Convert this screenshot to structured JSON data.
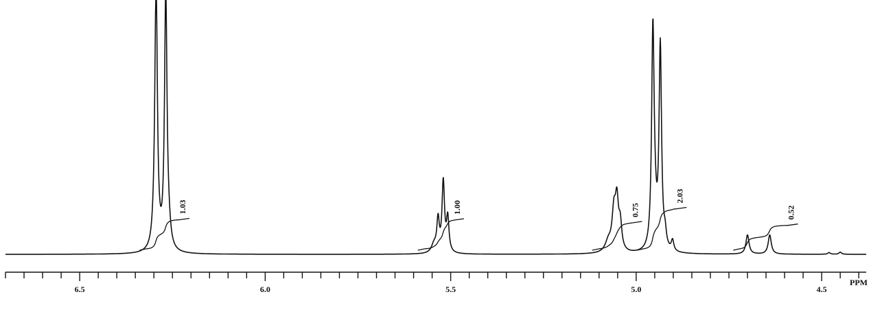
{
  "chart_data": {
    "type": "line",
    "title": "",
    "xlabel": "PPM",
    "ylabel": "",
    "xlim": [
      6.7,
      4.38
    ],
    "x_reversed": true,
    "grid": false,
    "major_ticks": [
      6.5,
      6.0,
      5.5,
      5.0,
      4.5
    ],
    "tick_labels": [
      "6.5",
      "6.0",
      "5.5",
      "5.0",
      "4.5"
    ],
    "minor_tick_step": 0.05,
    "baseline_intensity": 0.0,
    "peaks": [
      {
        "ppm": 6.294,
        "height": 1.2,
        "width": 0.004
      },
      {
        "ppm": 6.268,
        "height": 1.2,
        "width": 0.004
      },
      {
        "ppm": 6.297,
        "height": 0.09,
        "width": 0.006
      },
      {
        "ppm": 6.26,
        "height": 0.07,
        "width": 0.006
      },
      {
        "ppm": 5.534,
        "height": 0.15,
        "width": 0.004
      },
      {
        "ppm": 5.52,
        "height": 0.33,
        "width": 0.004
      },
      {
        "ppm": 5.508,
        "height": 0.16,
        "width": 0.004
      },
      {
        "ppm": 5.545,
        "height": 0.04,
        "width": 0.008
      },
      {
        "ppm": 5.06,
        "height": 0.18,
        "width": 0.006
      },
      {
        "ppm": 5.052,
        "height": 0.21,
        "width": 0.005
      },
      {
        "ppm": 5.043,
        "height": 0.12,
        "width": 0.005
      },
      {
        "ppm": 5.075,
        "height": 0.05,
        "width": 0.01
      },
      {
        "ppm": 4.955,
        "height": 1.0,
        "width": 0.004
      },
      {
        "ppm": 4.935,
        "height": 0.95,
        "width": 0.004
      },
      {
        "ppm": 4.95,
        "height": 0.12,
        "width": 0.006
      },
      {
        "ppm": 4.922,
        "height": 0.06,
        "width": 0.004
      },
      {
        "ppm": 4.902,
        "height": 0.05,
        "width": 0.004
      },
      {
        "ppm": 4.7,
        "height": 0.09,
        "width": 0.005
      },
      {
        "ppm": 4.64,
        "height": 0.09,
        "width": 0.005
      },
      {
        "ppm": 4.48,
        "height": 0.008,
        "width": 0.004
      },
      {
        "ppm": 4.45,
        "height": 0.01,
        "width": 0.004
      }
    ],
    "integrals": [
      {
        "label": "1.03",
        "ppm_start": 6.32,
        "ppm_end": 6.23,
        "value": 1.03
      },
      {
        "label": "1.00",
        "ppm_start": 5.57,
        "ppm_end": 5.49,
        "value": 1.0
      },
      {
        "label": "0.75",
        "ppm_start": 5.1,
        "ppm_end": 5.01,
        "value": 0.75
      },
      {
        "label": "2.03",
        "ppm_start": 4.98,
        "ppm_end": 4.89,
        "value": 2.03
      },
      {
        "label": "0.52",
        "ppm_start": 4.72,
        "ppm_end": 4.59,
        "value": 0.52
      }
    ]
  }
}
